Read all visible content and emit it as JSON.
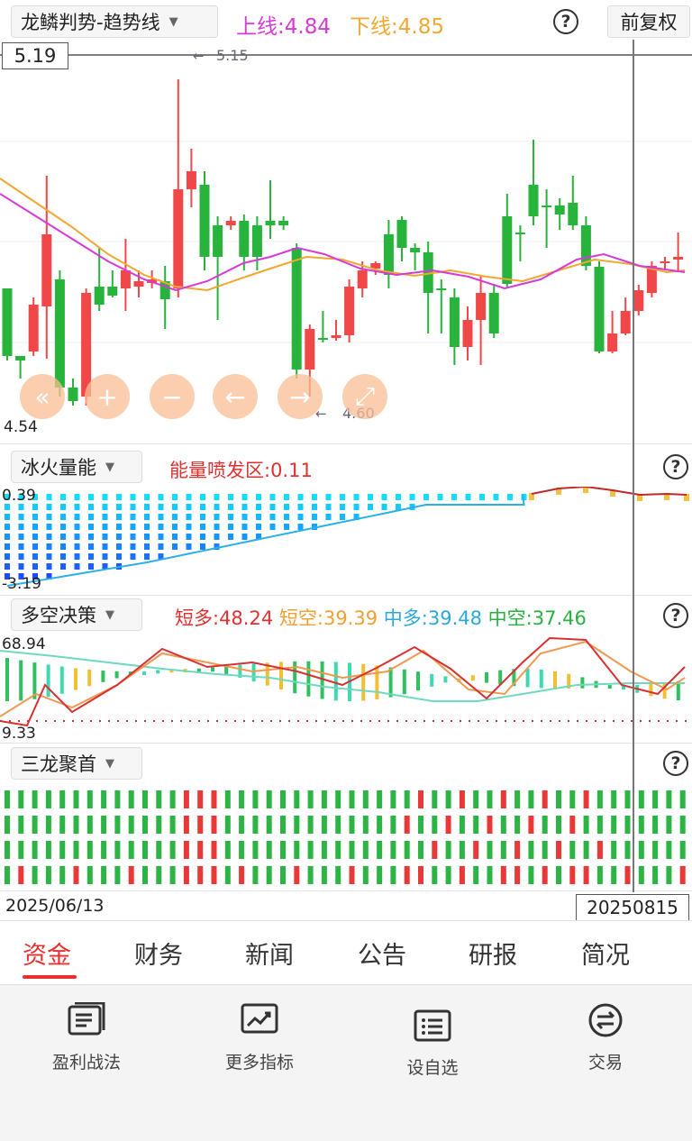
{
  "header": {
    "indicator": "龙鳞判势-趋势线",
    "upper_line": "上线:4.84",
    "lower_line": "下线:4.85",
    "adjust": "前复权"
  },
  "main_chart": {
    "y_top_label": "5.19",
    "y_bottom_label": "4.54",
    "max_marker": "5.15",
    "min_marker": "4.60",
    "colors": {
      "up": "#f04848",
      "down": "#27b33c",
      "ma1": "#d63ad6",
      "ma2": "#f0a830"
    }
  },
  "panel2": {
    "indicator": "冰火量能",
    "value": "能量喷发区:0.11",
    "y_top": "0.39",
    "y_bottom": "-3.19"
  },
  "panel3": {
    "indicator": "多空决策",
    "short_long": "短多:48.24",
    "short_short": "短空:39.39",
    "mid_long": "中多:39.48",
    "mid_short": "中空:37.46",
    "y_top": "68.94",
    "y_bottom": "9.33"
  },
  "panel4": {
    "indicator": "三龙聚首"
  },
  "time_axis": {
    "start": "2025/06/13",
    "cursor": "20250815"
  },
  "tabs": [
    "资金",
    "财务",
    "新闻",
    "公告",
    "研报",
    "简况"
  ],
  "bottom_bar": [
    "盈利战法",
    "更多指标",
    "设自选",
    "交易"
  ]
}
